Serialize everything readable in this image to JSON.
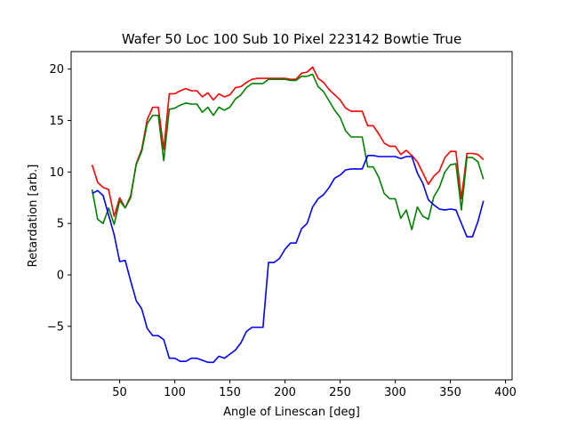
{
  "chart_data": {
    "type": "line",
    "title": "Wafer 50 Loc 100 Sub 10 Pixel 223142 Bowtie True",
    "xlabel": "Angle of Linescan [deg]",
    "ylabel": "Retardation [arb.]",
    "xlim": [
      6,
      406
    ],
    "ylim": [
      -10.2,
      21.7
    ],
    "xticks": [
      50,
      100,
      150,
      200,
      250,
      300,
      350,
      400
    ],
    "yticks": [
      -5,
      0,
      5,
      10,
      15,
      20
    ],
    "grid": false,
    "legend": "none",
    "x": [
      25,
      30,
      35,
      40,
      45,
      50,
      55,
      60,
      65,
      70,
      75,
      80,
      85,
      90,
      95,
      100,
      105,
      110,
      115,
      120,
      125,
      130,
      135,
      140,
      145,
      150,
      155,
      160,
      165,
      170,
      175,
      180,
      185,
      190,
      195,
      200,
      205,
      210,
      215,
      220,
      225,
      230,
      235,
      240,
      245,
      250,
      255,
      260,
      265,
      270,
      275,
      280,
      285,
      290,
      295,
      300,
      305,
      310,
      315,
      320,
      325,
      330,
      335,
      340,
      345,
      350,
      355,
      360,
      365,
      370,
      375,
      380,
      385
    ],
    "series": [
      {
        "color": "#ff0000",
        "values": [
          10.7,
          9.0,
          8.5,
          8.3,
          5.7,
          7.5,
          6.5,
          7.5,
          10.8,
          12.2,
          15.1,
          16.3,
          16.3,
          12.2,
          17.6,
          17.6,
          17.9,
          18.1,
          17.9,
          17.9,
          17.3,
          17.7,
          17.0,
          17.6,
          17.3,
          17.5,
          18.2,
          18.3,
          18.7,
          19.0,
          19.1,
          19.1,
          19.1,
          19.1,
          19.1,
          19.1,
          19.0,
          19.0,
          19.6,
          19.7,
          20.2,
          19.1,
          18.7,
          18.0,
          17.5,
          17.0,
          16.2,
          15.9,
          15.9,
          15.9,
          14.5,
          14.5,
          13.7,
          12.8,
          12.5,
          12.5,
          11.7,
          12.1,
          11.6,
          11.0,
          9.9,
          8.8,
          9.6,
          10.1,
          11.4,
          12.0,
          12.0,
          7.4,
          11.8,
          11.8,
          11.7,
          11.2,
          null
        ],
        "stroke": "#ff0000"
      },
      {
        "color": "#008000",
        "values": [
          8.3,
          5.4,
          5.0,
          6.5,
          4.9,
          7.2,
          6.5,
          7.7,
          10.7,
          12.0,
          14.7,
          15.5,
          15.5,
          11.1,
          16.1,
          16.2,
          16.5,
          16.7,
          16.6,
          16.6,
          15.8,
          16.3,
          15.5,
          16.3,
          16.0,
          16.3,
          17.1,
          17.5,
          18.2,
          18.6,
          18.6,
          18.6,
          19.0,
          19.0,
          19.0,
          19.0,
          18.9,
          18.9,
          19.3,
          19.3,
          19.5,
          18.3,
          17.8,
          16.9,
          16.0,
          15.3,
          14.0,
          13.4,
          13.4,
          13.4,
          10.5,
          10.5,
          9.5,
          7.9,
          7.4,
          7.4,
          5.5,
          6.3,
          4.4,
          6.6,
          5.7,
          5.4,
          7.6,
          8.5,
          10.0,
          10.7,
          10.8,
          6.3,
          11.4,
          11.4,
          11.0,
          9.3,
          null
        ],
        "stroke": "#008000"
      },
      {
        "color": "#0000ff",
        "values": [
          7.9,
          8.2,
          7.7,
          5.8,
          3.9,
          1.3,
          1.4,
          -0.6,
          -2.5,
          -3.3,
          -5.2,
          -5.9,
          -5.9,
          -6.3,
          -8.1,
          -8.1,
          -8.4,
          -8.4,
          -8.1,
          -8.1,
          -8.3,
          -8.5,
          -8.5,
          -7.9,
          -8.1,
          -7.7,
          -7.3,
          -6.6,
          -5.5,
          -5.1,
          -5.1,
          -5.1,
          1.2,
          1.2,
          1.6,
          2.5,
          3.1,
          3.1,
          4.5,
          5.0,
          6.6,
          7.4,
          7.8,
          8.5,
          9.4,
          9.7,
          10.2,
          10.3,
          10.3,
          10.3,
          11.6,
          11.6,
          11.5,
          11.5,
          11.5,
          11.5,
          11.3,
          11.5,
          11.5,
          9.9,
          8.9,
          7.3,
          6.8,
          6.4,
          6.3,
          6.4,
          6.3,
          5.0,
          3.7,
          3.7,
          5.2,
          7.2,
          null
        ],
        "stroke": "#0000ff"
      }
    ]
  }
}
